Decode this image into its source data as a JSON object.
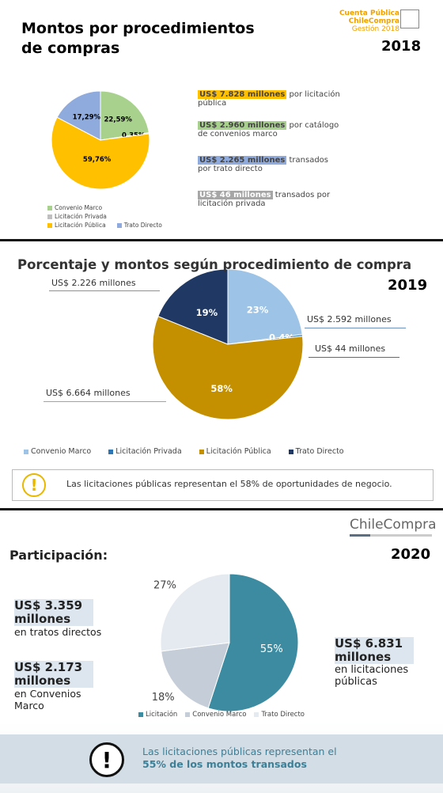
{
  "chart_data": [
    {
      "type": "pie",
      "title": "Montos por procedimientos de compras",
      "year": "2018",
      "logo": {
        "line1": "Cuenta Pública",
        "line2": "ChileCompra",
        "line3": "Gestión 2018"
      },
      "categories": [
        "Convenio Marco",
        "Licitación Privada",
        "Licitación Pública",
        "Trato Directo"
      ],
      "values": [
        22.59,
        0.35,
        59.76,
        17.29
      ],
      "value_labels": [
        "22,59%",
        "0,35%",
        "59,76%",
        "17,29%"
      ],
      "colors": [
        "#a9d18e",
        "#bfbfbf",
        "#ffc000",
        "#8faadc"
      ],
      "annotations": [
        {
          "amount": "US$ 7.828 millones",
          "text": "por licitación pública"
        },
        {
          "amount": "US$ 2.960 millones",
          "text": "por catálogo de convenios marco"
        },
        {
          "amount": "US$ 2.265 millones",
          "text": "transados por trato directo"
        },
        {
          "amount": "US$ 46 millones",
          "text": "transados por licitación privada"
        }
      ]
    },
    {
      "type": "pie",
      "title": "Porcentaje y montos según procedimiento de compra",
      "year": "2019",
      "categories": [
        "Convenio Marco",
        "Licitación Privada",
        "Licitación Pública",
        "Trato Directo"
      ],
      "values": [
        23,
        0.4,
        58,
        19
      ],
      "value_labels": [
        "23%",
        "0,4%",
        "58%",
        "19%"
      ],
      "colors": [
        "#9dc3e6",
        "#2e75b6",
        "#c49000",
        "#1f3864"
      ],
      "annotations": [
        "US$ 2.592 millones",
        "US$ 44 millones",
        "US$ 6.664 millones",
        "US$ 2.226 millones"
      ],
      "note": "Las licitaciones públicas representan el 58% de oportunidades de negocio."
    },
    {
      "type": "pie",
      "title": "Participación:",
      "year": "2020",
      "logo": "ChileCompra",
      "categories": [
        "Licitación",
        "Convenio Marco",
        "Trato Directo"
      ],
      "values": [
        55,
        18,
        27
      ],
      "value_labels": [
        "55%",
        "18%",
        "27%"
      ],
      "colors": [
        "#3d8ba0",
        "#c5cdd8",
        "#e4eaf0"
      ],
      "annotations": [
        {
          "amount": "US$ 3.359 millones",
          "text": "en tratos directos"
        },
        {
          "amount": "US$ 2.173 millones",
          "text": "en Convenios Marco"
        },
        {
          "amount": "US$ 6.831 millones",
          "text": "en licitaciones públicas"
        }
      ],
      "note": {
        "text": "Las licitaciones públicas representan el",
        "emphasis": "55% de los montos transados"
      }
    }
  ]
}
